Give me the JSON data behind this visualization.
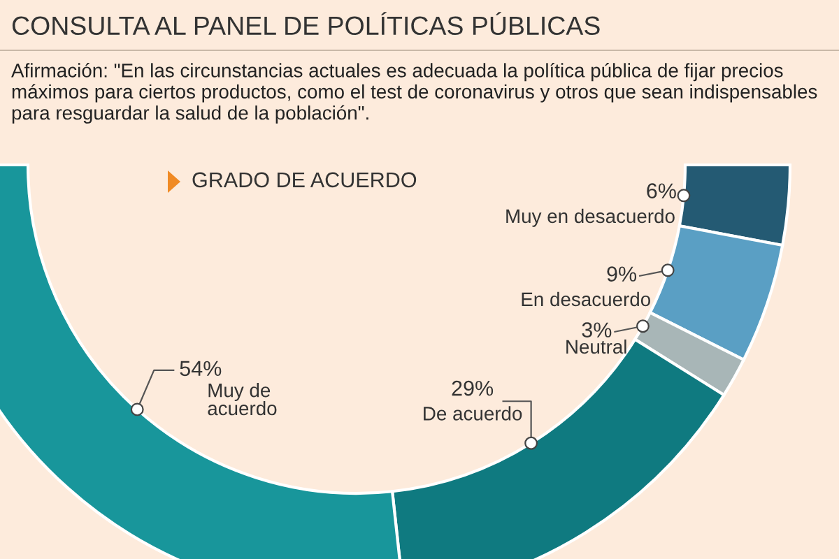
{
  "chart_data": {
    "type": "donut",
    "title": "CONSULTA AL PANEL DE POLÍTICAS PÚBLICAS",
    "subtitle": "Afirmación: \"En las circunstancias actuales es adecuada la política pública de fijar precios máximos para ciertos productos, como el test de coronavirus y otros que sean indispensables para resguardar la salud de la población\".",
    "legend_title": "GRADO DE ACUERDO",
    "categories": [
      "Muy en desacuerdo",
      "En desacuerdo",
      "Neutral",
      "De acuerdo",
      "Muy de\nacuerdo"
    ],
    "values": [
      6,
      9,
      3,
      29,
      54
    ],
    "value_labels": [
      "6%",
      "9%",
      "3%",
      "29%",
      "54%"
    ],
    "colors": [
      "#245a73",
      "#5a9fc4",
      "#a8b6b7",
      "#0f7a80",
      "#18969b"
    ]
  }
}
